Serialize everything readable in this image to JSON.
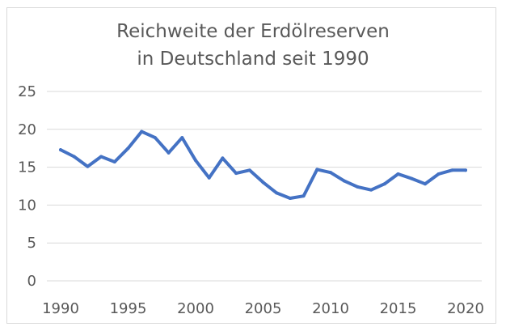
{
  "chart_data": {
    "type": "line",
    "title_lines": [
      "Reichweite der Erdölreserven",
      "in Deutschland seit 1990"
    ],
    "xlabel": "",
    "ylabel": "",
    "xlim": [
      1990,
      2020
    ],
    "ylim": [
      0,
      25
    ],
    "x_ticks": [
      "1990",
      "1995",
      "2000",
      "2005",
      "2010",
      "2015",
      "2020"
    ],
    "y_ticks": [
      "0",
      "5",
      "10",
      "15",
      "20",
      "25"
    ],
    "grid": "horizontal",
    "legend": "none",
    "series": [
      {
        "color": "#4472c4",
        "x": [
          1990,
          1991,
          1992,
          1993,
          1994,
          1995,
          1996,
          1997,
          1998,
          1999,
          2000,
          2001,
          2002,
          2003,
          2004,
          2005,
          2006,
          2007,
          2008,
          2009,
          2010,
          2011,
          2012,
          2013,
          2014,
          2015,
          2016,
          2017,
          2018,
          2019,
          2020
        ],
        "values": [
          17.3,
          16.4,
          15.1,
          16.4,
          15.7,
          17.5,
          19.7,
          18.9,
          16.9,
          18.9,
          15.9,
          13.6,
          16.2,
          14.2,
          14.6,
          13.0,
          11.6,
          10.9,
          11.2,
          14.7,
          14.3,
          13.2,
          12.4,
          12.0,
          12.8,
          14.1,
          13.5,
          12.8,
          14.1,
          14.6,
          14.6
        ]
      }
    ],
    "colors": {
      "line": "#4472c4",
      "grid": "#d9d9d9",
      "text": "#595959"
    }
  }
}
